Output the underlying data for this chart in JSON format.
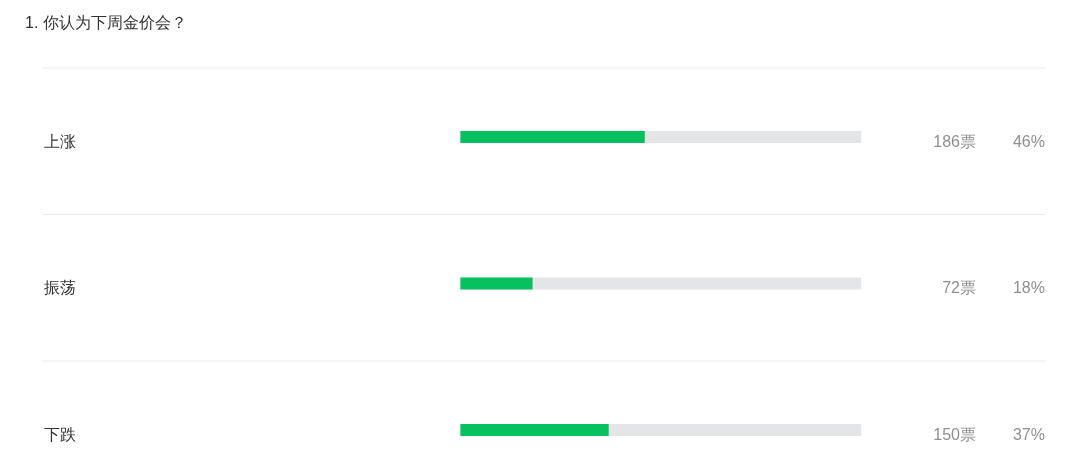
{
  "chart_data": {
    "type": "bar",
    "orientation": "horizontal",
    "title": "1. 你认为下周金价会？",
    "categories": [
      "上涨",
      "振荡",
      "下跌"
    ],
    "values": [
      46,
      18,
      37
    ],
    "color": "#07c160",
    "value_labels": [
      "46%",
      "18%",
      "37%"
    ],
    "annotations": [
      "186票",
      "72票",
      "150票"
    ],
    "xlim": [
      0,
      100
    ],
    "tick_labels": "y"
  }
}
